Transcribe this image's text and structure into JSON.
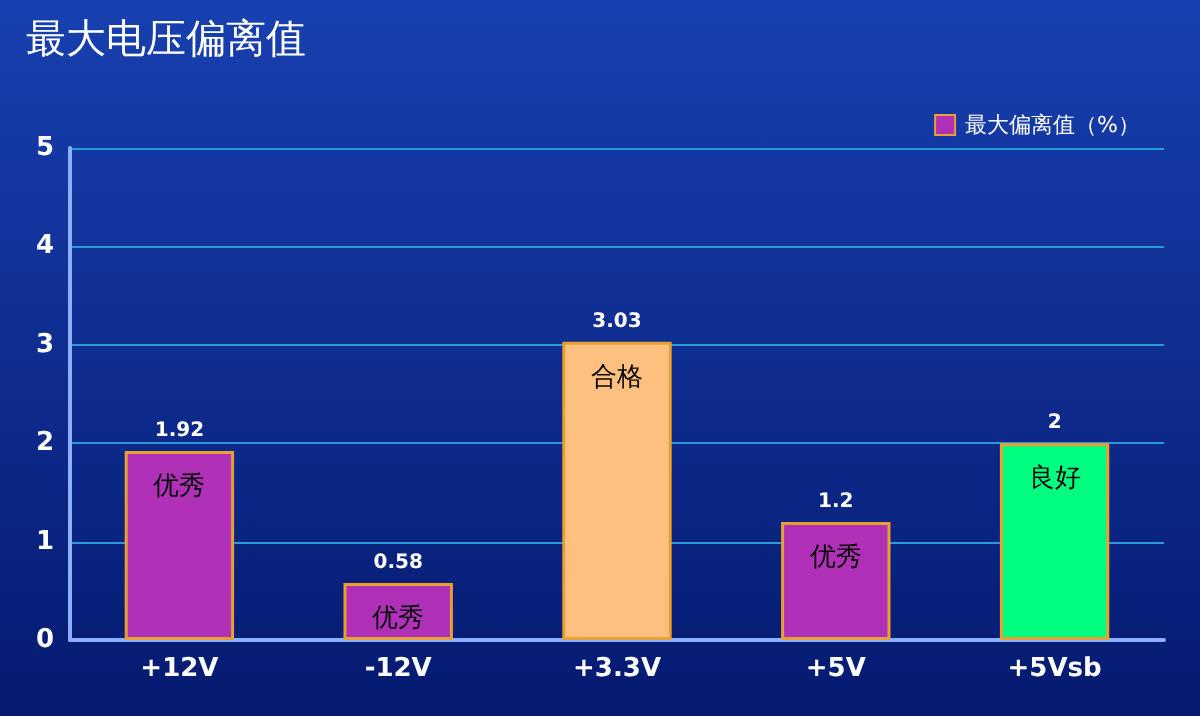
{
  "chart_data": {
    "type": "bar",
    "title": "最大电压偏离值",
    "categories": [
      "+12V",
      "-12V",
      "+3.3V",
      "+5V",
      "+5Vsb"
    ],
    "series": [
      {
        "name": "最大偏离值（%）",
        "color": "#b030b8",
        "colors": [
          "#b030b8",
          "#b030b8",
          "#ffc080",
          "#b030b8",
          "#00ff80"
        ],
        "values": [
          1.92,
          0.58,
          3.03,
          1.2,
          2
        ]
      }
    ],
    "data_labels": true,
    "annotations": [
      {
        "text": "优秀",
        "x": "+12V",
        "y": 1.92
      },
      {
        "text": "优秀",
        "x": "-12V",
        "y": 0.58
      },
      {
        "text": "合格",
        "x": "+3.3V",
        "y": 3.03
      },
      {
        "text": "优秀",
        "x": "+5V",
        "y": 1.2
      },
      {
        "text": "良好",
        "x": "+5Vsb",
        "y": 2
      }
    ],
    "ylim": [
      0,
      5
    ],
    "yticks": [
      0,
      1,
      2,
      3,
      4,
      5
    ],
    "grid": "y",
    "legend": "top right"
  }
}
